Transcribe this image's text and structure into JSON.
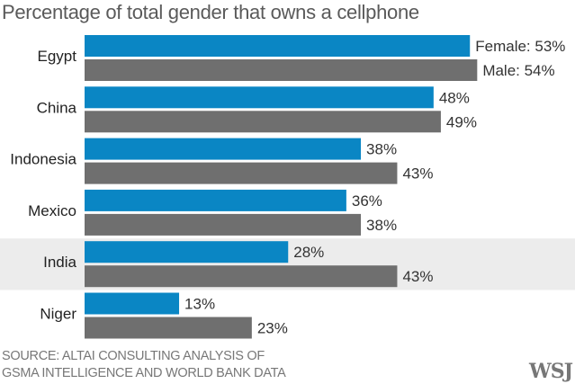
{
  "chart_data": {
    "type": "bar",
    "orientation": "horizontal",
    "title": "Percentage of total gender that owns a cellphone",
    "categories": [
      "Egypt",
      "China",
      "Indonesia",
      "Mexico",
      "India",
      "Niger"
    ],
    "series": [
      {
        "name": "Female",
        "color": "#0a86c4",
        "values": [
          53,
          48,
          38,
          36,
          28,
          13
        ]
      },
      {
        "name": "Male",
        "color": "#6f6f6f",
        "values": [
          54,
          49,
          43,
          38,
          43,
          23
        ]
      }
    ],
    "first_row_labels": [
      "Female: 53%",
      "Male: 54%"
    ],
    "value_suffix": "%",
    "highlighted_category": "India",
    "highlight_color": "#ececec",
    "xlim": [
      0,
      54
    ],
    "grid": false
  },
  "source_line1": "SOURCE: ALTAI CONSULTING ANALYSIS OF",
  "source_line2": "GSMA INTELLIGENCE AND WORLD BANK DATA",
  "logo": "WSJ"
}
